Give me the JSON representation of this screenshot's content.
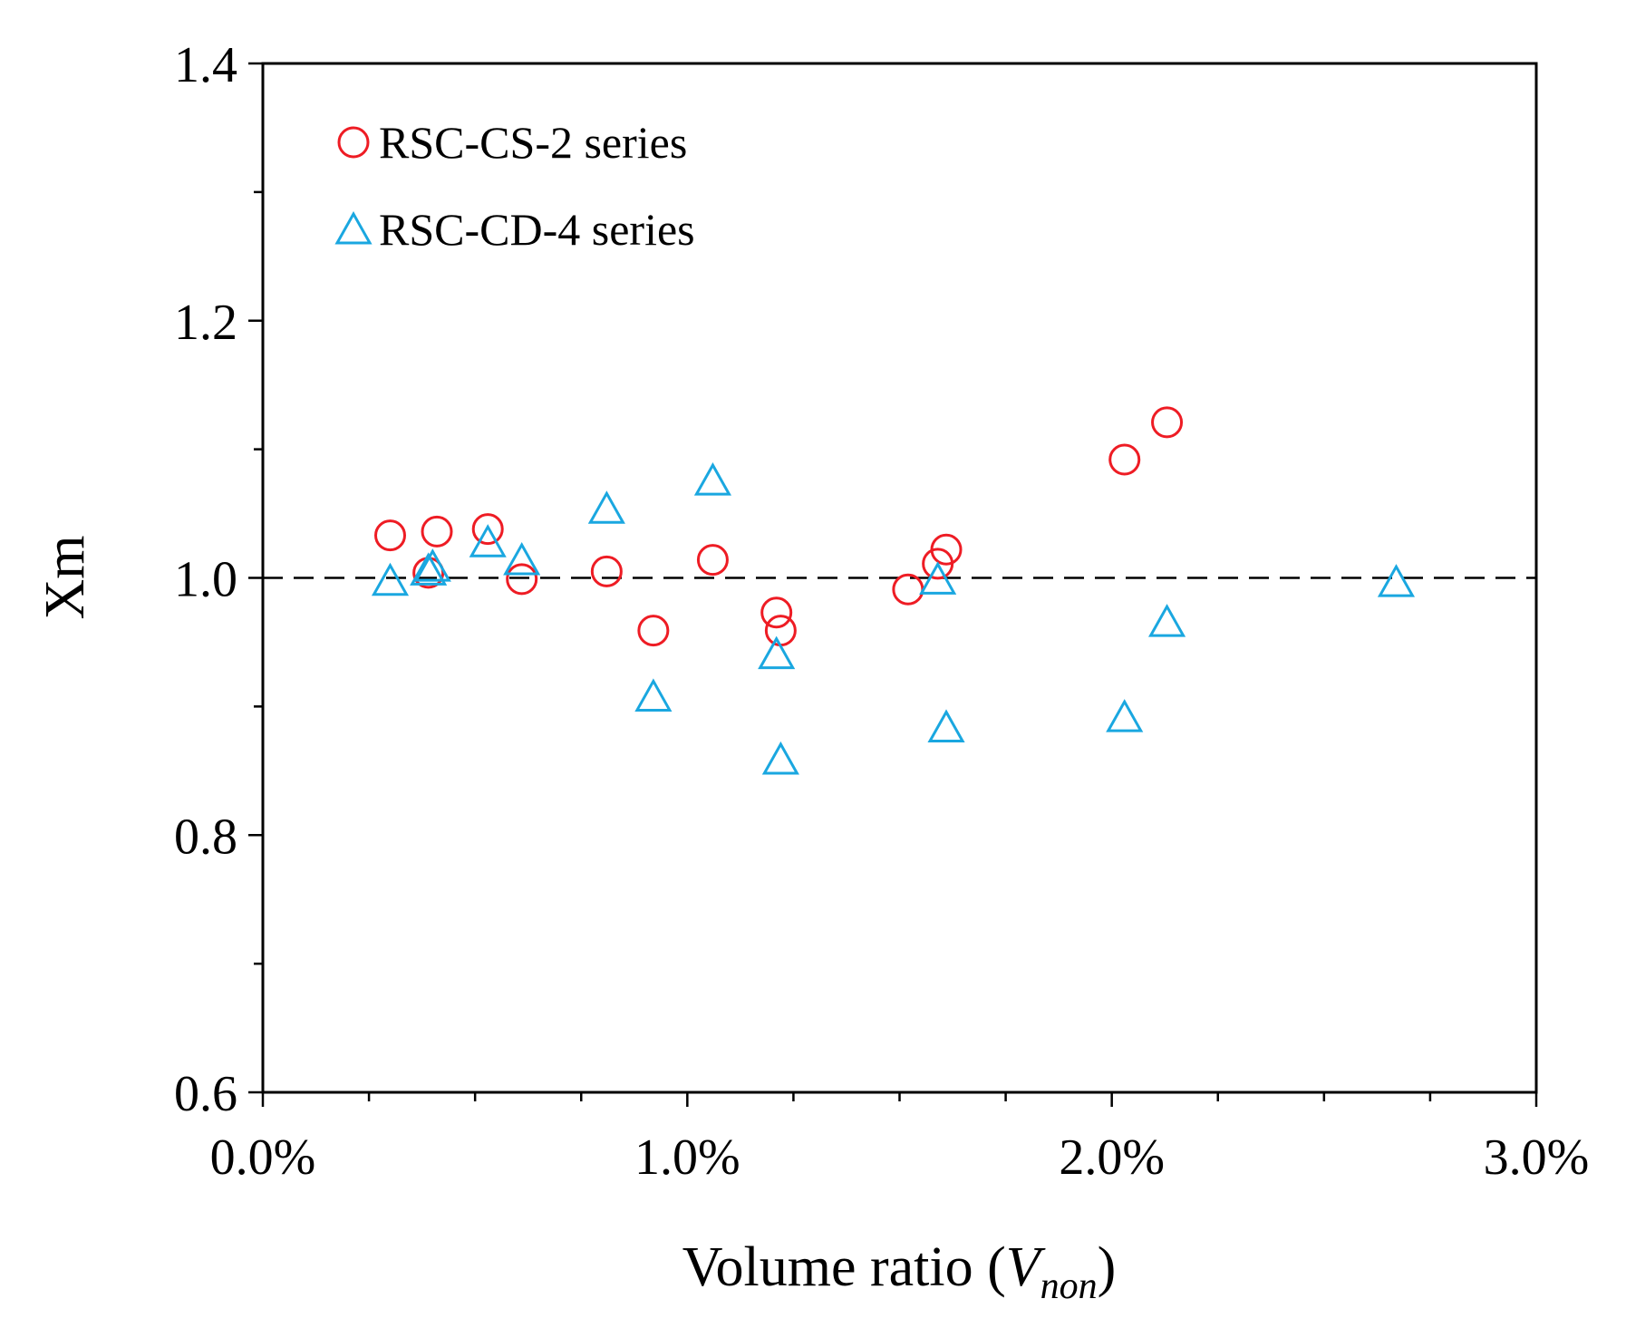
{
  "chart_data": {
    "type": "scatter",
    "xlabel_prefix": "Volume ratio (",
    "xlabel_var": "V",
    "xlabel_sub": "non",
    "xlabel_suffix": ")",
    "ylabel": "Xm",
    "xlim": [
      0,
      3.0
    ],
    "ylim": [
      0.6,
      1.4
    ],
    "xticks": [
      0.0,
      1.0,
      2.0,
      3.0
    ],
    "xtick_labels": [
      "0.0%",
      "1.0%",
      "2.0%",
      "3.0%"
    ],
    "x_minor_step": 0.25,
    "yticks": [
      0.6,
      0.8,
      1.0,
      1.2,
      1.4
    ],
    "ytick_labels": [
      "0.6",
      "0.8",
      "1.0",
      "1.2",
      "1.4"
    ],
    "y_minor_step": 0.1,
    "reference_line": {
      "y": 1.0,
      "style": "dashed"
    },
    "legend_position": "top-left",
    "series": [
      {
        "name": "RSC-CS-2 series",
        "marker": "circle",
        "color": "#ee1c24",
        "points": [
          [
            0.3,
            1.033
          ],
          [
            0.39,
            1.004
          ],
          [
            0.41,
            1.036
          ],
          [
            0.53,
            1.038
          ],
          [
            0.61,
            0.999
          ],
          [
            0.81,
            1.005
          ],
          [
            0.92,
            0.959
          ],
          [
            1.06,
            1.014
          ],
          [
            1.21,
            0.973
          ],
          [
            1.22,
            0.959
          ],
          [
            1.52,
            0.991
          ],
          [
            1.59,
            1.011
          ],
          [
            1.61,
            1.022
          ],
          [
            2.03,
            1.092
          ],
          [
            2.13,
            1.121
          ]
        ]
      },
      {
        "name": "RSC-CD-4 series",
        "marker": "triangle",
        "color": "#1aa7e0",
        "points": [
          [
            0.3,
            0.997
          ],
          [
            0.39,
            1.005
          ],
          [
            0.4,
            1.008
          ],
          [
            0.53,
            1.027
          ],
          [
            0.61,
            1.013
          ],
          [
            0.81,
            1.053
          ],
          [
            0.92,
            0.907
          ],
          [
            1.06,
            1.075
          ],
          [
            1.21,
            0.94
          ],
          [
            1.22,
            0.858
          ],
          [
            1.59,
            0.998
          ],
          [
            1.61,
            0.883
          ],
          [
            2.03,
            0.891
          ],
          [
            2.13,
            0.965
          ],
          [
            2.67,
            0.996
          ]
        ]
      }
    ]
  }
}
